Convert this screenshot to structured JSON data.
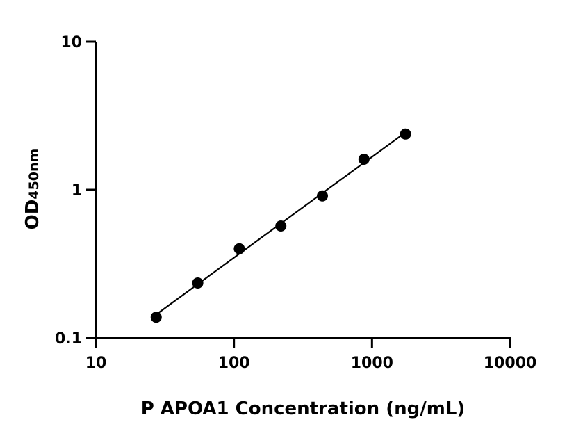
{
  "chart_data": {
    "type": "scatter",
    "title": "",
    "xlabel": "P APOA1 Concentration (ng/mL)",
    "ylabel_main": "OD",
    "ylabel_sub": "450nm",
    "x_scale": "log",
    "y_scale": "log",
    "xlim": [
      10,
      10000
    ],
    "ylim": [
      0.1,
      10
    ],
    "x_ticks": [
      "10",
      "100",
      "1000",
      "10000"
    ],
    "y_ticks": [
      "0.1",
      "1",
      "10"
    ],
    "grid": false,
    "fit_line": true,
    "marker_color": "#000000",
    "points": [
      {
        "x": 27.34,
        "y": 0.138
      },
      {
        "x": 54.69,
        "y": 0.235
      },
      {
        "x": 109.4,
        "y": 0.4
      },
      {
        "x": 218.75,
        "y": 0.57
      },
      {
        "x": 437.5,
        "y": 0.91
      },
      {
        "x": 875,
        "y": 1.61
      },
      {
        "x": 1750,
        "y": 2.38
      }
    ]
  }
}
